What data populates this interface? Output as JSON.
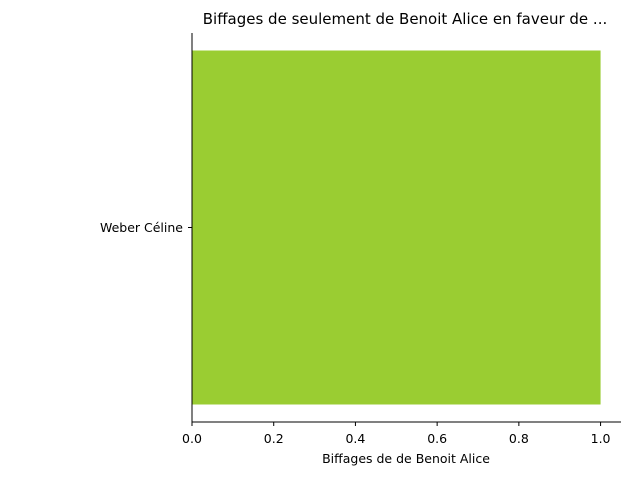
{
  "chart_data": {
    "type": "bar",
    "orientation": "horizontal",
    "title": "Biffages de seulement de Benoit Alice en faveur de ...",
    "xlabel": "Biffages de de Benoit Alice",
    "ylabel": "",
    "categories": [
      "Weber Céline"
    ],
    "values": [
      1.0
    ],
    "xlim": [
      0,
      1.05
    ],
    "xticks": [
      0.0,
      0.2,
      0.4,
      0.6,
      0.8,
      1.0
    ],
    "xtick_labels": [
      "0.0",
      "0.2",
      "0.4",
      "0.6",
      "0.8",
      "1.0"
    ],
    "grid": false,
    "legend": "none",
    "bar_color": "#9acd32"
  }
}
